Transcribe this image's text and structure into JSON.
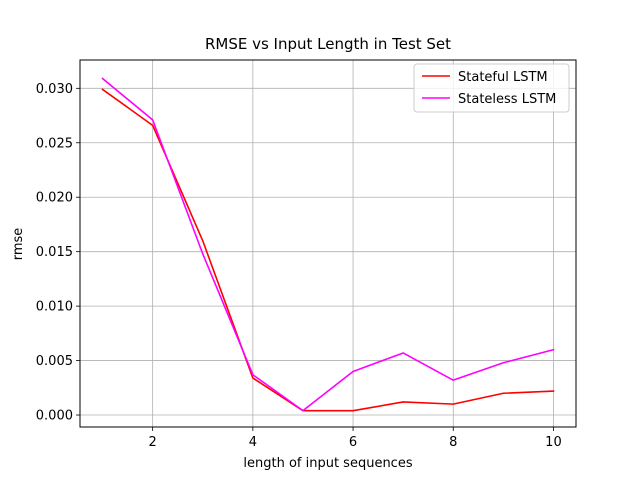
{
  "chart_data": {
    "type": "line",
    "title": "RMSE vs Input Length in Test Set",
    "xlabel": "length of input sequences",
    "ylabel": "rmse",
    "xlim": [
      0.55,
      10.45
    ],
    "ylim": [
      -0.0011,
      0.0326
    ],
    "xticks": [
      2,
      4,
      6,
      8,
      10
    ],
    "xtick_labels": [
      "2",
      "4",
      "6",
      "8",
      "10"
    ],
    "yticks": [
      0.0,
      0.005,
      0.01,
      0.015,
      0.02,
      0.025,
      0.03
    ],
    "ytick_labels": [
      "0.000",
      "0.005",
      "0.010",
      "0.015",
      "0.020",
      "0.025",
      "0.030"
    ],
    "grid": true,
    "legend_position": "upper right",
    "x": [
      1,
      2,
      3,
      4,
      5,
      6,
      7,
      8,
      9,
      10
    ],
    "series": [
      {
        "name": "Stateful LSTM",
        "color": "#ff0000",
        "values": [
          0.0299,
          0.0266,
          0.016,
          0.0034,
          0.0004,
          0.0004,
          0.0012,
          0.001,
          0.002,
          0.0022
        ]
      },
      {
        "name": "Stateless LSTM",
        "color": "#ff00ff",
        "values": [
          0.0309,
          0.0271,
          0.0148,
          0.0037,
          0.0004,
          0.004,
          0.0057,
          0.0032,
          0.0048,
          0.006
        ]
      }
    ]
  }
}
